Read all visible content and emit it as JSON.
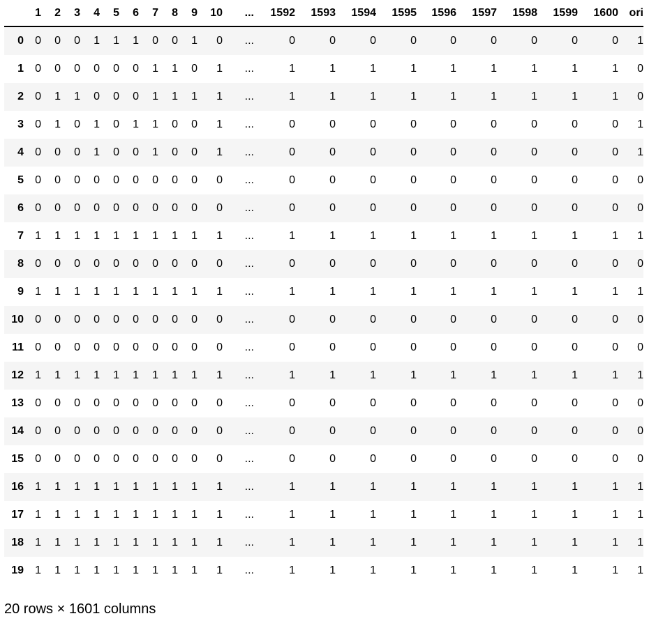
{
  "table": {
    "index_header": "",
    "columns": [
      "1",
      "2",
      "3",
      "4",
      "5",
      "6",
      "7",
      "8",
      "9",
      "10",
      "...",
      "1592",
      "1593",
      "1594",
      "1595",
      "1596",
      "1597",
      "1598",
      "1599",
      "1600",
      "ori"
    ],
    "rows": [
      {
        "index": "0",
        "cells": [
          "0",
          "0",
          "0",
          "1",
          "1",
          "1",
          "0",
          "0",
          "1",
          "0",
          "...",
          "0",
          "0",
          "0",
          "0",
          "0",
          "0",
          "0",
          "0",
          "0",
          "1"
        ]
      },
      {
        "index": "1",
        "cells": [
          "0",
          "0",
          "0",
          "0",
          "0",
          "0",
          "1",
          "1",
          "0",
          "1",
          "...",
          "1",
          "1",
          "1",
          "1",
          "1",
          "1",
          "1",
          "1",
          "1",
          "0"
        ]
      },
      {
        "index": "2",
        "cells": [
          "0",
          "1",
          "1",
          "0",
          "0",
          "0",
          "1",
          "1",
          "1",
          "1",
          "...",
          "1",
          "1",
          "1",
          "1",
          "1",
          "1",
          "1",
          "1",
          "1",
          "0"
        ]
      },
      {
        "index": "3",
        "cells": [
          "0",
          "1",
          "0",
          "1",
          "0",
          "1",
          "1",
          "0",
          "0",
          "1",
          "...",
          "0",
          "0",
          "0",
          "0",
          "0",
          "0",
          "0",
          "0",
          "0",
          "1"
        ]
      },
      {
        "index": "4",
        "cells": [
          "0",
          "0",
          "0",
          "1",
          "0",
          "0",
          "1",
          "0",
          "0",
          "1",
          "...",
          "0",
          "0",
          "0",
          "0",
          "0",
          "0",
          "0",
          "0",
          "0",
          "1"
        ]
      },
      {
        "index": "5",
        "cells": [
          "0",
          "0",
          "0",
          "0",
          "0",
          "0",
          "0",
          "0",
          "0",
          "0",
          "...",
          "0",
          "0",
          "0",
          "0",
          "0",
          "0",
          "0",
          "0",
          "0",
          "0"
        ]
      },
      {
        "index": "6",
        "cells": [
          "0",
          "0",
          "0",
          "0",
          "0",
          "0",
          "0",
          "0",
          "0",
          "0",
          "...",
          "0",
          "0",
          "0",
          "0",
          "0",
          "0",
          "0",
          "0",
          "0",
          "0"
        ]
      },
      {
        "index": "7",
        "cells": [
          "1",
          "1",
          "1",
          "1",
          "1",
          "1",
          "1",
          "1",
          "1",
          "1",
          "...",
          "1",
          "1",
          "1",
          "1",
          "1",
          "1",
          "1",
          "1",
          "1",
          "1"
        ]
      },
      {
        "index": "8",
        "cells": [
          "0",
          "0",
          "0",
          "0",
          "0",
          "0",
          "0",
          "0",
          "0",
          "0",
          "...",
          "0",
          "0",
          "0",
          "0",
          "0",
          "0",
          "0",
          "0",
          "0",
          "0"
        ]
      },
      {
        "index": "9",
        "cells": [
          "1",
          "1",
          "1",
          "1",
          "1",
          "1",
          "1",
          "1",
          "1",
          "1",
          "...",
          "1",
          "1",
          "1",
          "1",
          "1",
          "1",
          "1",
          "1",
          "1",
          "1"
        ]
      },
      {
        "index": "10",
        "cells": [
          "0",
          "0",
          "0",
          "0",
          "0",
          "0",
          "0",
          "0",
          "0",
          "0",
          "...",
          "0",
          "0",
          "0",
          "0",
          "0",
          "0",
          "0",
          "0",
          "0",
          "0"
        ]
      },
      {
        "index": "11",
        "cells": [
          "0",
          "0",
          "0",
          "0",
          "0",
          "0",
          "0",
          "0",
          "0",
          "0",
          "...",
          "0",
          "0",
          "0",
          "0",
          "0",
          "0",
          "0",
          "0",
          "0",
          "0"
        ]
      },
      {
        "index": "12",
        "cells": [
          "1",
          "1",
          "1",
          "1",
          "1",
          "1",
          "1",
          "1",
          "1",
          "1",
          "...",
          "1",
          "1",
          "1",
          "1",
          "1",
          "1",
          "1",
          "1",
          "1",
          "1"
        ]
      },
      {
        "index": "13",
        "cells": [
          "0",
          "0",
          "0",
          "0",
          "0",
          "0",
          "0",
          "0",
          "0",
          "0",
          "...",
          "0",
          "0",
          "0",
          "0",
          "0",
          "0",
          "0",
          "0",
          "0",
          "0"
        ]
      },
      {
        "index": "14",
        "cells": [
          "0",
          "0",
          "0",
          "0",
          "0",
          "0",
          "0",
          "0",
          "0",
          "0",
          "...",
          "0",
          "0",
          "0",
          "0",
          "0",
          "0",
          "0",
          "0",
          "0",
          "0"
        ]
      },
      {
        "index": "15",
        "cells": [
          "0",
          "0",
          "0",
          "0",
          "0",
          "0",
          "0",
          "0",
          "0",
          "0",
          "...",
          "0",
          "0",
          "0",
          "0",
          "0",
          "0",
          "0",
          "0",
          "0",
          "0"
        ]
      },
      {
        "index": "16",
        "cells": [
          "1",
          "1",
          "1",
          "1",
          "1",
          "1",
          "1",
          "1",
          "1",
          "1",
          "...",
          "1",
          "1",
          "1",
          "1",
          "1",
          "1",
          "1",
          "1",
          "1",
          "1"
        ]
      },
      {
        "index": "17",
        "cells": [
          "1",
          "1",
          "1",
          "1",
          "1",
          "1",
          "1",
          "1",
          "1",
          "1",
          "...",
          "1",
          "1",
          "1",
          "1",
          "1",
          "1",
          "1",
          "1",
          "1",
          "1"
        ]
      },
      {
        "index": "18",
        "cells": [
          "1",
          "1",
          "1",
          "1",
          "1",
          "1",
          "1",
          "1",
          "1",
          "1",
          "...",
          "1",
          "1",
          "1",
          "1",
          "1",
          "1",
          "1",
          "1",
          "1",
          "1"
        ]
      },
      {
        "index": "19",
        "cells": [
          "1",
          "1",
          "1",
          "1",
          "1",
          "1",
          "1",
          "1",
          "1",
          "1",
          "...",
          "1",
          "1",
          "1",
          "1",
          "1",
          "1",
          "1",
          "1",
          "1",
          "1"
        ]
      }
    ]
  },
  "footer": {
    "shape_text": "20 rows × 1601 columns"
  }
}
